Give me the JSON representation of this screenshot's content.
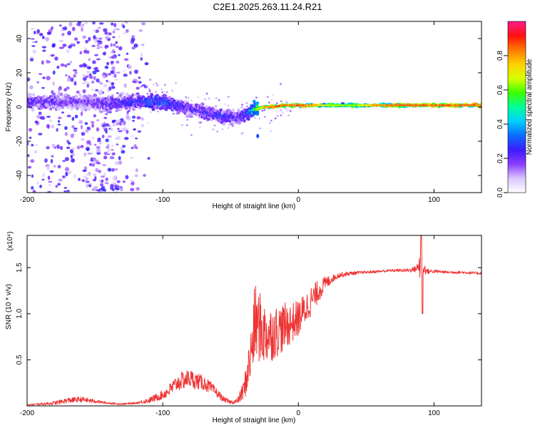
{
  "title": "C2E1.2025.263.11.24.R21",
  "chart_data": [
    {
      "type": "heatmap",
      "title": "C2E1.2025.263.11.24.R21",
      "xlabel": "Height of straight line (km)",
      "ylabel": "Frequency (Hz)",
      "xlim": [
        -200,
        135
      ],
      "ylim": [
        -50,
        50
      ],
      "xticks": [
        -200,
        -100,
        0,
        100
      ],
      "yticks": [
        -40,
        -20,
        0,
        20,
        40
      ],
      "colorbar": {
        "label": "Normalized spectral amplitude",
        "range": [
          0,
          1
        ],
        "ticks": [
          "0.0",
          "0.2",
          "0.4",
          "0.6",
          "0.8"
        ],
        "colors": [
          "#ffffff",
          "#d9c6ff",
          "#8b3cff",
          "#3b1cff",
          "#0a6cff",
          "#00d0ff",
          "#00ff9a",
          "#3cff00",
          "#d8ff00",
          "#ffd000",
          "#ff7a00",
          "#ff1010",
          "#ff1a8c"
        ]
      },
      "ridge": {
        "x": [
          -200,
          -180,
          -160,
          -140,
          -120,
          -100,
          -90,
          -80,
          -70,
          -60,
          -50,
          -45,
          -40,
          -35,
          -30,
          -25,
          -20,
          -10,
          0,
          10,
          20,
          40,
          60,
          80,
          100,
          120,
          135
        ],
        "freq": [
          3,
          3,
          3,
          2,
          3,
          3,
          1,
          -1,
          -3,
          -5,
          -6,
          -7,
          -5,
          -2,
          -1,
          0,
          0,
          1,
          1,
          1,
          1,
          1,
          1,
          1,
          1,
          1,
          1
        ],
        "amplitude": [
          0.3,
          0.3,
          0.25,
          0.3,
          0.35,
          0.45,
          0.35,
          0.3,
          0.3,
          0.35,
          0.35,
          0.3,
          0.35,
          0.5,
          0.7,
          0.85,
          0.9,
          0.9,
          0.9,
          0.85,
          0.7,
          0.65,
          0.9,
          0.9,
          0.9,
          0.9,
          0.9
        ]
      },
      "annotations": [
        "strong narrowband carrier near 1 Hz from about -35 km upward",
        "diffuse scatter from -200 to -115 km"
      ]
    },
    {
      "type": "line",
      "xlabel": "Height of straight line (km)",
      "ylabel": "SNR (10 * v/v)",
      "scale_label": "(x10⁴)",
      "xlim": [
        -200,
        135
      ],
      "ylim": [
        0,
        1.85
      ],
      "xticks": [
        -200,
        -100,
        0,
        100
      ],
      "yticks": [
        0.5,
        1.0,
        1.5
      ],
      "ytick_labels": [
        "0.5",
        "1.0",
        "1.5"
      ],
      "series": [
        {
          "name": "SNR",
          "color": "#ee3333",
          "x": [
            -200,
            -180,
            -170,
            -160,
            -150,
            -140,
            -130,
            -120,
            -110,
            -100,
            -95,
            -90,
            -85,
            -80,
            -75,
            -70,
            -65,
            -60,
            -55,
            -50,
            -45,
            -40,
            -35,
            -32,
            -30,
            -27,
            -25,
            -20,
            -15,
            -10,
            -5,
            0,
            5,
            10,
            15,
            20,
            25,
            30,
            40,
            50,
            60,
            70,
            80,
            85,
            88,
            90,
            92,
            95,
            100,
            110,
            120,
            130,
            135
          ],
          "y": [
            0.01,
            0.03,
            0.06,
            0.07,
            0.05,
            0.03,
            0.02,
            0.03,
            0.06,
            0.12,
            0.17,
            0.24,
            0.28,
            0.3,
            0.27,
            0.25,
            0.2,
            0.14,
            0.07,
            0.04,
            0.05,
            0.18,
            0.55,
            0.9,
            0.88,
            0.82,
            0.78,
            0.78,
            0.82,
            0.86,
            0.9,
            0.95,
            1.05,
            1.15,
            1.25,
            1.33,
            1.38,
            1.42,
            1.44,
            1.45,
            1.46,
            1.47,
            1.47,
            1.48,
            1.5,
            1.55,
            1.5,
            1.46,
            1.46,
            1.45,
            1.45,
            1.44,
            1.44
          ],
          "noise": [
            0.005,
            0.02,
            0.03,
            0.03,
            0.02,
            0.01,
            0.01,
            0.01,
            0.03,
            0.05,
            0.07,
            0.09,
            0.1,
            0.1,
            0.09,
            0.08,
            0.07,
            0.05,
            0.03,
            0.02,
            0.03,
            0.12,
            0.3,
            0.45,
            0.4,
            0.38,
            0.35,
            0.3,
            0.28,
            0.26,
            0.22,
            0.2,
            0.18,
            0.16,
            0.12,
            0.08,
            0.04,
            0.03,
            0.02,
            0.015,
            0.015,
            0.015,
            0.02,
            0.03,
            0.05,
            0.25,
            0.08,
            0.03,
            0.02,
            0.015,
            0.015,
            0.015,
            0.015
          ]
        }
      ],
      "annotations": [
        "sharp spike to ~1.85 and dip to ~1.0 near x = 90 km"
      ]
    }
  ]
}
